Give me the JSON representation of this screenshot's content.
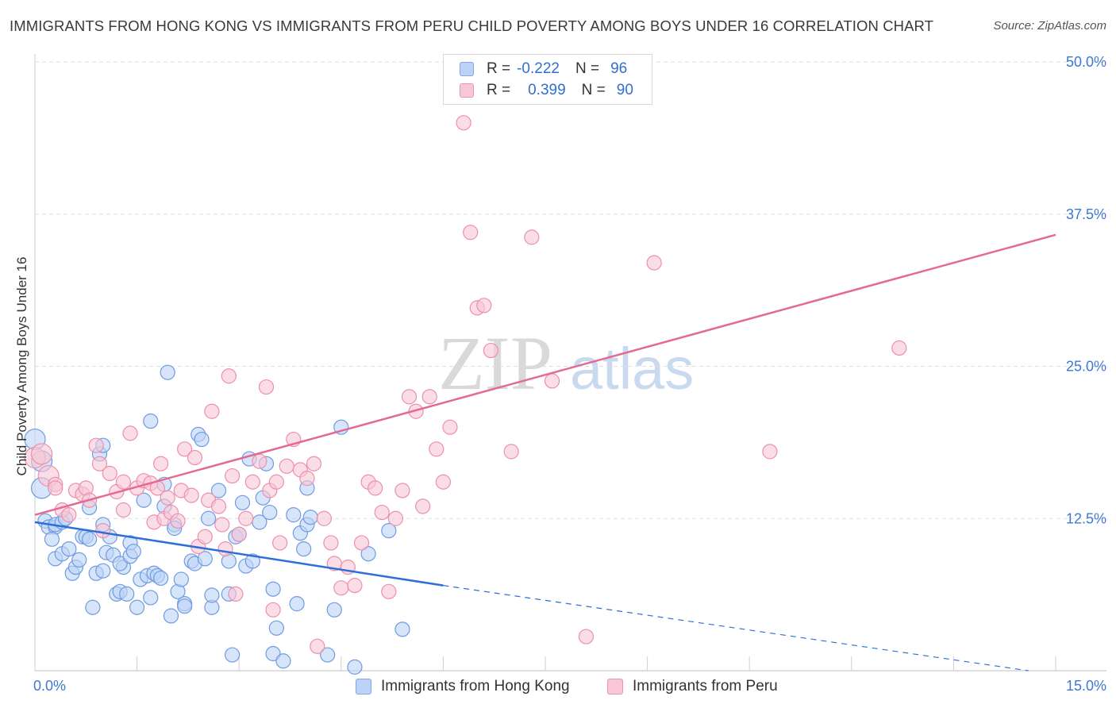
{
  "header": {
    "title": "IMMIGRANTS FROM HONG KONG VS IMMIGRANTS FROM PERU CHILD POVERTY AMONG BOYS UNDER 16 CORRELATION CHART",
    "source": "Source: ZipAtlas.com"
  },
  "watermark": {
    "zip": "ZIP",
    "atlas": "atlas"
  },
  "stats_legend": {
    "rows": [
      {
        "r_label": "R =",
        "r_value": "-0.222",
        "n_label": "N =",
        "n_value": "96"
      },
      {
        "r_label": "R =",
        "r_value": "0.399",
        "n_label": "N =",
        "n_value": "90"
      }
    ]
  },
  "bottom_legend": {
    "hong_kong": "Immigrants from Hong Kong",
    "peru": "Immigrants from Peru"
  },
  "colors": {
    "hong_kong_fill": "#bcd3f7",
    "hong_kong_stroke": "#6f9be0",
    "hong_kong_line": "#2d6fd6",
    "peru_fill": "#f8c6d6",
    "peru_stroke": "#ec8fae",
    "peru_line": "#e46a93",
    "tick_label": "#3d78d4",
    "grid": "#dedede"
  },
  "chart_data": {
    "type": "scatter",
    "title": "IMMIGRANTS FROM HONG KONG VS IMMIGRANTS FROM PERU CHILD POVERTY AMONG BOYS UNDER 16 CORRELATION CHART",
    "xlabel": "",
    "ylabel": "Child Poverty Among Boys Under 16",
    "xlim": [
      0,
      15
    ],
    "ylim": [
      0,
      50
    ],
    "x_tick_labels": [
      "0.0%",
      "15.0%"
    ],
    "y_ticks": [
      12.5,
      25.0,
      37.5,
      50.0
    ],
    "y_tick_labels": [
      "12.5%",
      "25.0%",
      "37.5%",
      "50.0%"
    ],
    "grid": true,
    "series": [
      {
        "name": "Immigrants from Hong Kong",
        "r": -0.222,
        "n": 96,
        "trend": {
          "solid": [
            [
              0.0,
              12.2
            ],
            [
              6.0,
              7.0
            ]
          ],
          "dashed": [
            [
              6.0,
              7.0
            ],
            [
              14.6,
              0.0
            ]
          ]
        },
        "points": [
          [
            0.0,
            19.0
          ],
          [
            0.1,
            17.2
          ],
          [
            0.1,
            15.0
          ],
          [
            0.15,
            12.3
          ],
          [
            0.2,
            11.8
          ],
          [
            0.3,
            11.8
          ],
          [
            0.3,
            12.0
          ],
          [
            0.25,
            10.8
          ],
          [
            0.4,
            12.2
          ],
          [
            0.3,
            9.2
          ],
          [
            0.45,
            12.5
          ],
          [
            0.4,
            9.6
          ],
          [
            0.5,
            10.0
          ],
          [
            0.55,
            8.0
          ],
          [
            0.6,
            8.5
          ],
          [
            0.65,
            9.1
          ],
          [
            0.7,
            11.0
          ],
          [
            0.75,
            11.0
          ],
          [
            0.8,
            13.4
          ],
          [
            0.8,
            10.8
          ],
          [
            0.85,
            5.2
          ],
          [
            0.9,
            8.0
          ],
          [
            0.95,
            17.8
          ],
          [
            1.0,
            18.5
          ],
          [
            1.0,
            8.2
          ],
          [
            1.0,
            12.0
          ],
          [
            1.05,
            9.7
          ],
          [
            1.1,
            11.0
          ],
          [
            1.15,
            9.5
          ],
          [
            1.2,
            6.3
          ],
          [
            1.25,
            6.5
          ],
          [
            1.3,
            8.5
          ],
          [
            1.35,
            6.3
          ],
          [
            1.25,
            8.8
          ],
          [
            1.4,
            10.5
          ],
          [
            1.4,
            9.4
          ],
          [
            1.45,
            9.8
          ],
          [
            1.5,
            5.2
          ],
          [
            1.55,
            7.5
          ],
          [
            1.6,
            14.0
          ],
          [
            1.65,
            7.8
          ],
          [
            1.7,
            6.0
          ],
          [
            1.7,
            20.5
          ],
          [
            1.75,
            8.0
          ],
          [
            1.8,
            7.8
          ],
          [
            1.85,
            7.6
          ],
          [
            1.9,
            15.3
          ],
          [
            1.95,
            24.5
          ],
          [
            1.9,
            13.5
          ],
          [
            2.0,
            4.5
          ],
          [
            2.05,
            12.0
          ],
          [
            2.1,
            6.5
          ],
          [
            2.15,
            7.5
          ],
          [
            2.2,
            5.5
          ],
          [
            2.2,
            5.3
          ],
          [
            2.3,
            9.0
          ],
          [
            2.35,
            8.8
          ],
          [
            2.4,
            19.4
          ],
          [
            2.45,
            19.0
          ],
          [
            2.5,
            9.2
          ],
          [
            2.55,
            12.5
          ],
          [
            2.6,
            5.2
          ],
          [
            2.6,
            6.2
          ],
          [
            2.7,
            14.8
          ],
          [
            2.85,
            6.3
          ],
          [
            2.85,
            9.0
          ],
          [
            2.9,
            1.3
          ],
          [
            2.95,
            11.0
          ],
          [
            3.0,
            11.2
          ],
          [
            3.05,
            13.8
          ],
          [
            3.1,
            8.6
          ],
          [
            3.15,
            17.4
          ],
          [
            3.2,
            9.0
          ],
          [
            3.3,
            12.2
          ],
          [
            3.35,
            14.2
          ],
          [
            3.4,
            17.0
          ],
          [
            3.45,
            13.0
          ],
          [
            3.5,
            6.7
          ],
          [
            3.5,
            1.4
          ],
          [
            3.55,
            3.5
          ],
          [
            3.65,
            0.8
          ],
          [
            3.8,
            12.8
          ],
          [
            3.85,
            5.5
          ],
          [
            3.9,
            11.3
          ],
          [
            3.95,
            10.0
          ],
          [
            4.0,
            15.0
          ],
          [
            4.0,
            12.0
          ],
          [
            4.05,
            12.6
          ],
          [
            4.3,
            1.3
          ],
          [
            4.4,
            5.0
          ],
          [
            4.5,
            20.0
          ],
          [
            4.7,
            0.3
          ],
          [
            4.9,
            9.6
          ],
          [
            5.2,
            11.5
          ],
          [
            5.4,
            3.4
          ],
          [
            2.05,
            11.7
          ]
        ]
      },
      {
        "name": "Immigrants from Peru",
        "r": 0.399,
        "n": 90,
        "trend": {
          "solid": [
            [
              0.0,
              12.8
            ],
            [
              15.0,
              35.8
            ]
          ]
        },
        "points": [
          [
            0.0,
            17.5
          ],
          [
            0.1,
            17.8
          ],
          [
            0.2,
            16.0
          ],
          [
            0.3,
            15.3
          ],
          [
            0.3,
            15.0
          ],
          [
            0.4,
            13.2
          ],
          [
            0.5,
            12.8
          ],
          [
            0.6,
            14.8
          ],
          [
            0.7,
            14.5
          ],
          [
            0.75,
            15.0
          ],
          [
            0.8,
            14.0
          ],
          [
            0.9,
            18.5
          ],
          [
            0.95,
            17.0
          ],
          [
            1.0,
            11.5
          ],
          [
            1.1,
            16.2
          ],
          [
            1.2,
            14.7
          ],
          [
            1.3,
            15.5
          ],
          [
            1.3,
            13.2
          ],
          [
            1.4,
            19.5
          ],
          [
            1.5,
            15.0
          ],
          [
            1.6,
            15.6
          ],
          [
            1.7,
            15.4
          ],
          [
            1.75,
            12.2
          ],
          [
            1.8,
            15.0
          ],
          [
            1.85,
            17.0
          ],
          [
            1.9,
            12.5
          ],
          [
            1.95,
            14.2
          ],
          [
            2.0,
            13.0
          ],
          [
            2.1,
            12.3
          ],
          [
            2.15,
            14.8
          ],
          [
            2.2,
            18.2
          ],
          [
            2.3,
            14.4
          ],
          [
            2.35,
            17.5
          ],
          [
            2.4,
            10.2
          ],
          [
            2.5,
            11.0
          ],
          [
            2.55,
            14.0
          ],
          [
            2.6,
            21.3
          ],
          [
            2.7,
            13.5
          ],
          [
            2.75,
            12.0
          ],
          [
            2.8,
            10.0
          ],
          [
            2.85,
            24.2
          ],
          [
            2.9,
            16.0
          ],
          [
            2.95,
            6.3
          ],
          [
            3.0,
            11.2
          ],
          [
            3.1,
            12.5
          ],
          [
            3.2,
            15.5
          ],
          [
            3.3,
            17.2
          ],
          [
            3.4,
            23.3
          ],
          [
            3.45,
            14.8
          ],
          [
            3.5,
            5.0
          ],
          [
            3.55,
            15.5
          ],
          [
            3.6,
            10.5
          ],
          [
            3.7,
            16.8
          ],
          [
            3.8,
            19.0
          ],
          [
            3.9,
            16.5
          ],
          [
            4.0,
            15.8
          ],
          [
            4.1,
            17.0
          ],
          [
            4.15,
            2.0
          ],
          [
            4.25,
            12.5
          ],
          [
            4.35,
            10.5
          ],
          [
            4.4,
            8.8
          ],
          [
            4.5,
            6.8
          ],
          [
            4.6,
            8.5
          ],
          [
            4.7,
            7.0
          ],
          [
            4.8,
            10.5
          ],
          [
            4.9,
            15.5
          ],
          [
            5.0,
            15.0
          ],
          [
            5.1,
            13.0
          ],
          [
            5.2,
            6.5
          ],
          [
            5.3,
            12.5
          ],
          [
            5.4,
            14.8
          ],
          [
            5.5,
            22.5
          ],
          [
            5.6,
            21.3
          ],
          [
            5.7,
            13.5
          ],
          [
            5.8,
            22.5
          ],
          [
            5.9,
            18.2
          ],
          [
            6.0,
            15.5
          ],
          [
            6.1,
            20.0
          ],
          [
            6.3,
            45.0
          ],
          [
            6.4,
            36.0
          ],
          [
            6.5,
            29.8
          ],
          [
            6.6,
            30.0
          ],
          [
            6.7,
            26.3
          ],
          [
            7.0,
            18.0
          ],
          [
            7.3,
            35.6
          ],
          [
            7.6,
            23.8
          ],
          [
            8.1,
            2.8
          ],
          [
            9.1,
            33.5
          ],
          [
            10.8,
            18.0
          ],
          [
            12.7,
            26.5
          ]
        ]
      }
    ]
  }
}
